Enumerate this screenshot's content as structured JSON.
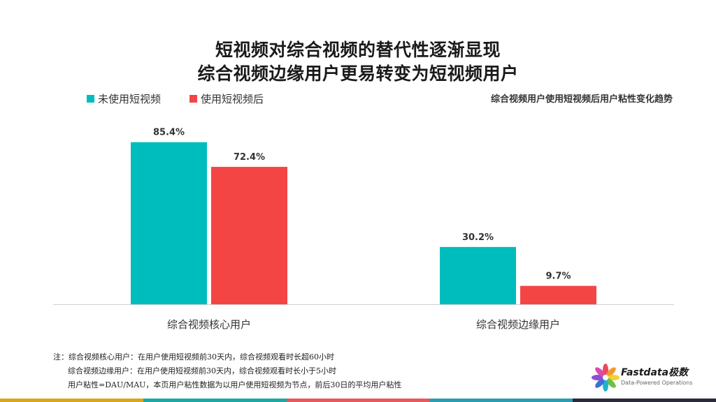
{
  "title_line1": "短视频对综合视频的替代性逐渐显现",
  "title_line2": "综合视频边缘用户更易转变为短视频用户",
  "chart_data": {
    "type": "bar",
    "subtitle": "综合视频用户使用短视频后用户粘性变化趋势",
    "categories": [
      "综合视频核心用户",
      "综合视频边缘用户"
    ],
    "series": [
      {
        "name": "未使用短视频",
        "color": "#00BDBD",
        "values": [
          85.4,
          30.2
        ]
      },
      {
        "name": "使用短视频后",
        "color": "#F44545",
        "values": [
          72.4,
          9.7
        ]
      }
    ],
    "value_suffix": "%",
    "ylim": [
      0,
      100
    ],
    "legend": "top-left",
    "grid": false
  },
  "notes": {
    "line1": "注：综合视频核心用户：在用户使用短视频前30天内，综合视频观看时长超60小时",
    "line2": "综合视频边缘用户：在用户使用短视频前30天内，综合视频观看时长小于5小时",
    "line3": "用户粘性=DAU/MAU，本页用户粘性数据为以用户使用短视频为节点，前后30日的平均用户粘性"
  },
  "logo": {
    "name": "Fastdata极数",
    "tagline": "Data-Powered Operations"
  },
  "bottom_bar_colors": [
    "#D9A620",
    "#1FA7A3",
    "#E45A5E",
    "#2B9DB0",
    "#2A2A3A"
  ]
}
